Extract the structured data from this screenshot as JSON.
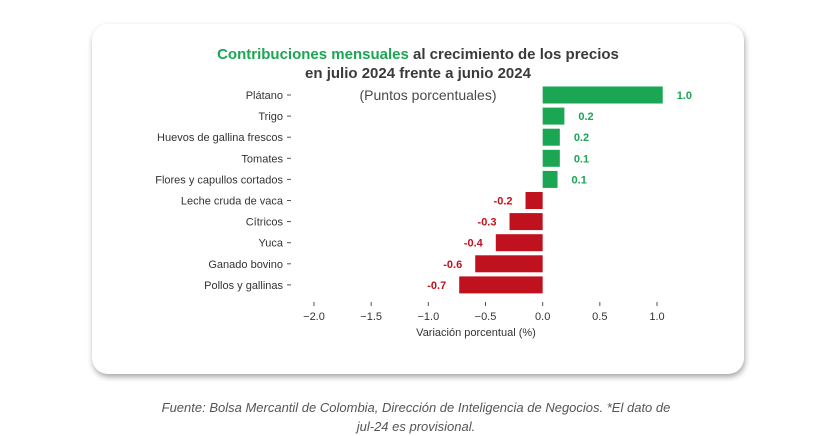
{
  "chart_data": {
    "type": "bar",
    "orientation": "horizontal",
    "title_line1_accent": "Contribuciones mensuales",
    "title_line1_rest": " al crecimiento de los precios",
    "title_line2": "en julio 2024 frente a junio 2024",
    "subtitle": "(Puntos porcentuales)",
    "categories": [
      "Plátano",
      "Trigo",
      "Huevos de gallina frescos",
      "Tomates",
      "Flores y capullos cortados",
      "Leche cruda de vaca",
      "Cítricos",
      "Yuca",
      "Ganado bovino",
      "Pollos y gallinas"
    ],
    "values": [
      1.05,
      0.19,
      0.15,
      0.15,
      0.13,
      -0.15,
      -0.29,
      -0.41,
      -0.59,
      -0.73
    ],
    "value_labels": [
      "1.0",
      "0.2",
      "0.2",
      "0.1",
      "0.1",
      "-0.2",
      "-0.3",
      "-0.4",
      "-0.6",
      "-0.7"
    ],
    "xlim": [
      -2.0,
      1.0
    ],
    "xticks": [
      -2.0,
      -1.5,
      -1.0,
      -0.5,
      0.0,
      0.5,
      1.0
    ],
    "xtick_labels": [
      "−2.0",
      "−1.5",
      "−1.0",
      "−0.5",
      "0.0",
      "0.5",
      "1.0"
    ],
    "xlabel": "Variación porcentual (%)",
    "ylabel": "",
    "positive_color": "#1aa653",
    "negative_color": "#c0111f",
    "caption_line1": "Fuente: Bolsa Mercantil de Colombia, Dirección de Inteligencia de Negocios. *El dato de",
    "caption_line2": "jul-24  es provisional."
  }
}
